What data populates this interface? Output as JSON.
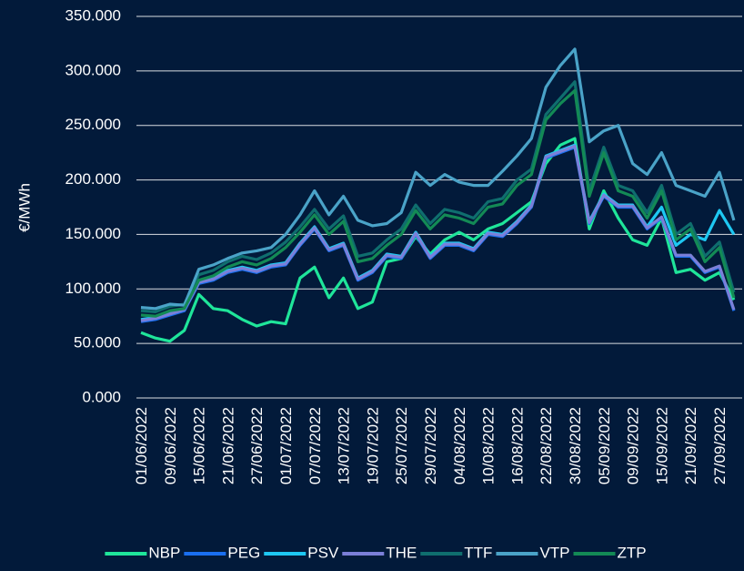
{
  "chart_data": {
    "type": "line",
    "y_label": "€/MWh",
    "categories": [
      "01/06/2022",
      null,
      "09/06/2022",
      null,
      "15/06/2022",
      null,
      "21/06/2022",
      null,
      "27/06/2022",
      null,
      "01/07/2022",
      null,
      "07/07/2022",
      null,
      "13/07/2022",
      null,
      "19/07/2022",
      null,
      "25/07/2022",
      null,
      "29/07/2022",
      null,
      "04/08/2022",
      null,
      "10/08/2022",
      null,
      "16/08/2022",
      null,
      "22/08/2022",
      null,
      "30/08/2022",
      null,
      "05/09/2022",
      null,
      "09/09/2022",
      null,
      "15/09/2022",
      null,
      "21/09/2022",
      null,
      "27/09/2022",
      null
    ],
    "ylim": [
      0,
      350
    ],
    "yticks": [
      {
        "value": 0,
        "label": "0.000"
      },
      {
        "value": 50,
        "label": "50.000"
      },
      {
        "value": 100,
        "label": "100.000"
      },
      {
        "value": 150,
        "label": "150.000"
      },
      {
        "value": 200,
        "label": "200.000"
      },
      {
        "value": 250,
        "label": "250.000"
      },
      {
        "value": 300,
        "label": "300.000"
      },
      {
        "value": 350,
        "label": "350.000"
      }
    ],
    "grid": true,
    "legend": "bottom",
    "series": [
      {
        "name": "NBP",
        "color": "#1fe59a",
        "values": [
          60,
          55,
          52,
          62,
          95,
          82,
          80,
          72,
          66,
          70,
          68,
          110,
          120,
          92,
          110,
          82,
          88,
          125,
          128,
          148,
          132,
          145,
          152,
          145,
          155,
          160,
          170,
          180,
          215,
          232,
          238,
          155,
          190,
          165,
          145,
          140,
          165,
          115,
          118,
          108,
          115,
          90
        ]
      },
      {
        "name": "PEG",
        "color": "#1a6ff0",
        "values": [
          70,
          72,
          76,
          80,
          105,
          108,
          115,
          118,
          115,
          120,
          122,
          140,
          155,
          135,
          140,
          108,
          115,
          130,
          128,
          150,
          128,
          140,
          140,
          135,
          150,
          148,
          160,
          175,
          220,
          225,
          230,
          160,
          185,
          175,
          175,
          155,
          165,
          130,
          130,
          115,
          120,
          80
        ]
      },
      {
        "name": "PSV",
        "color": "#1ec8f2",
        "values": [
          72,
          74,
          78,
          82,
          107,
          110,
          117,
          120,
          117,
          122,
          124,
          142,
          157,
          137,
          142,
          110,
          117,
          132,
          130,
          152,
          130,
          142,
          142,
          137,
          152,
          150,
          162,
          177,
          222,
          227,
          232,
          162,
          187,
          177,
          177,
          157,
          175,
          140,
          150,
          145,
          172,
          150
        ]
      },
      {
        "name": "THE",
        "color": "#7b7fd8",
        "values": [
          71,
          73,
          77,
          81,
          106,
          109,
          116,
          119,
          116,
          121,
          123,
          141,
          156,
          136,
          141,
          109,
          116,
          131,
          129,
          151,
          129,
          141,
          141,
          136,
          151,
          149,
          161,
          176,
          221,
          226,
          231,
          161,
          186,
          176,
          176,
          156,
          166,
          131,
          131,
          116,
          121,
          81
        ]
      },
      {
        "name": "TTF",
        "color": "#0f6e6e",
        "values": [
          80,
          79,
          84,
          86,
          113,
          117,
          125,
          130,
          127,
          133,
          143,
          157,
          173,
          155,
          167,
          130,
          133,
          145,
          155,
          177,
          160,
          173,
          170,
          165,
          180,
          183,
          200,
          210,
          260,
          275,
          290,
          190,
          230,
          195,
          190,
          170,
          195,
          150,
          160,
          130,
          143,
          97
        ]
      },
      {
        "name": "VTP",
        "color": "#4aa3c8",
        "values": [
          83,
          82,
          86,
          85,
          118,
          122,
          128,
          133,
          135,
          138,
          150,
          168,
          190,
          168,
          185,
          163,
          158,
          160,
          170,
          207,
          195,
          205,
          198,
          195,
          195,
          208,
          222,
          238,
          285,
          305,
          320,
          235,
          245,
          250,
          215,
          205,
          225,
          195,
          190,
          185,
          207,
          163
        ]
      },
      {
        "name": "ZTP",
        "color": "#138a55",
        "values": [
          76,
          75,
          80,
          82,
          108,
          112,
          120,
          125,
          122,
          128,
          138,
          152,
          168,
          150,
          162,
          125,
          128,
          140,
          150,
          172,
          155,
          168,
          165,
          160,
          175,
          178,
          195,
          205,
          255,
          270,
          282,
          185,
          225,
          190,
          185,
          165,
          190,
          145,
          155,
          125,
          138,
          92
        ]
      }
    ]
  }
}
